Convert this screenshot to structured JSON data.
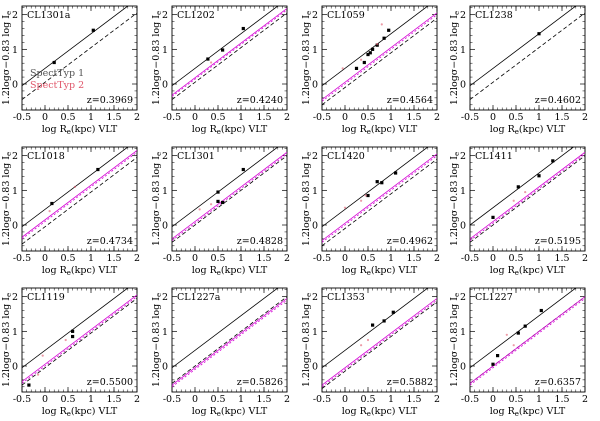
{
  "figure": {
    "title": "",
    "legend": {
      "items": [
        {
          "label": "SpectTyp 1",
          "color": "#555555"
        },
        {
          "label": "SpectTyp 2",
          "color": "#e0566a"
        }
      ],
      "panel_index": 0
    }
  },
  "chart_data": [
    {
      "type": "scatter",
      "name": "CL1301a",
      "zlabel": "z=0.3969",
      "xlabel": "log R_e(kpc) VLT",
      "ylabel": "1.2logσ−0.83 log I_e",
      "xlim": [
        -0.5,
        2
      ],
      "ylim": [
        -0.75,
        2.25
      ],
      "xticks": [
        "-0.5",
        "0",
        "0.5",
        "1",
        "1.5",
        "2"
      ],
      "yticks": [
        "0",
        "1",
        "2"
      ],
      "lines": {
        "solid": [
          0.45,
          1.0
        ],
        "dashed": [
          0.05,
          1.0
        ],
        "magenta": null,
        "magenta_dashed": null
      },
      "points": [
        {
          "x": 0.2,
          "y": 0.62,
          "t": 1
        },
        {
          "x": 1.05,
          "y": 1.55,
          "t": 1
        }
      ]
    },
    {
      "type": "scatter",
      "name": "CL1202",
      "zlabel": "z=0.4240",
      "xlabel": "log R_e(kpc) VLT",
      "ylabel": "1.2logσ−0.83 log I_e",
      "xlim": [
        -0.5,
        2
      ],
      "ylim": [
        -0.75,
        2.25
      ],
      "xticks": [
        "-0.5",
        "0",
        "0.5",
        "1",
        "1.5",
        "2"
      ],
      "yticks": [
        "0",
        "1",
        "2"
      ],
      "lines": {
        "solid": [
          0.45,
          1.0
        ],
        "dashed": [
          0.05,
          1.0
        ],
        "magenta": [
          0.18,
          1.0
        ],
        "magenta_dashed": [
          0.14,
          1.0
        ]
      },
      "points": [
        {
          "x": 0.28,
          "y": 0.72,
          "t": 1
        },
        {
          "x": 0.6,
          "y": 0.98,
          "t": 1
        },
        {
          "x": 1.05,
          "y": 1.6,
          "t": 1
        },
        {
          "x": 0.35,
          "y": 0.62,
          "t": 2
        }
      ]
    },
    {
      "type": "scatter",
      "name": "CL1059",
      "zlabel": "z=0.4564",
      "xlabel": "log R_e(kpc) VLT",
      "ylabel": "1.2logσ−0.83 log I_e",
      "xlim": [
        -0.5,
        2
      ],
      "ylim": [
        -0.75,
        2.25
      ],
      "xticks": [
        "-0.5",
        "0",
        "0.5",
        "1",
        "1.5",
        "2"
      ],
      "yticks": [
        "0",
        "1",
        "2"
      ],
      "lines": {
        "solid": [
          0.45,
          1.0
        ],
        "dashed": [
          -0.1,
          1.0
        ],
        "magenta": [
          0.05,
          1.0
        ],
        "magenta_dashed": [
          0.0,
          1.0
        ]
      },
      "points": [
        {
          "x": 0.25,
          "y": 0.45,
          "t": 1
        },
        {
          "x": 0.42,
          "y": 0.62,
          "t": 1
        },
        {
          "x": 0.5,
          "y": 0.85,
          "t": 1
        },
        {
          "x": 0.6,
          "y": 1.0,
          "t": 1
        },
        {
          "x": 0.7,
          "y": 1.12,
          "t": 1
        },
        {
          "x": 0.85,
          "y": 1.32,
          "t": 1
        },
        {
          "x": 0.95,
          "y": 1.55,
          "t": 1
        },
        {
          "x": 0.55,
          "y": 0.9,
          "t": 1
        },
        {
          "x": -0.05,
          "y": 0.45,
          "t": 2
        },
        {
          "x": 0.35,
          "y": 0.7,
          "t": 2
        },
        {
          "x": 0.7,
          "y": 1.15,
          "t": 2
        },
        {
          "x": 0.8,
          "y": 1.72,
          "t": 2
        }
      ]
    },
    {
      "type": "scatter",
      "name": "CL1238",
      "zlabel": "z=0.4602",
      "xlabel": "log R_e(kpc) VLT",
      "ylabel": "1.2logσ−0.83 log I_e",
      "xlim": [
        -0.5,
        2
      ],
      "ylim": [
        -0.75,
        2.25
      ],
      "xticks": [
        "-0.5",
        "0",
        "0.5",
        "1",
        "1.5",
        "2"
      ],
      "yticks": [
        "0",
        "1",
        "2"
      ],
      "lines": {
        "solid": [
          0.45,
          1.0
        ],
        "dashed": [
          0.05,
          1.0
        ],
        "magenta": null,
        "magenta_dashed": null
      },
      "points": [
        {
          "x": 1.0,
          "y": 1.45,
          "t": 1
        }
      ]
    },
    {
      "type": "scatter",
      "name": "CL1018",
      "zlabel": "z=0.4734",
      "xlabel": "log R_e(kpc) VLT",
      "ylabel": "1.2logσ−0.83 log I_e",
      "xlim": [
        -0.5,
        2
      ],
      "ylim": [
        -0.75,
        2.25
      ],
      "xticks": [
        "-0.5",
        "0",
        "0.5",
        "1",
        "1.5",
        "2"
      ],
      "yticks": [
        "0",
        "1",
        "2"
      ],
      "lines": {
        "solid": [
          0.45,
          1.0
        ],
        "dashed": [
          -0.05,
          1.0
        ],
        "magenta": [
          0.15,
          1.0
        ],
        "magenta_dashed": [
          0.1,
          1.0
        ]
      },
      "points": [
        {
          "x": 0.15,
          "y": 0.62,
          "t": 1
        },
        {
          "x": 1.15,
          "y": 1.6,
          "t": 1
        },
        {
          "x": 0.1,
          "y": 0.4,
          "t": 2
        },
        {
          "x": 0.65,
          "y": 1.1,
          "t": 2
        }
      ]
    },
    {
      "type": "scatter",
      "name": "CL1301",
      "zlabel": "z=0.4828",
      "xlabel": "log R_e(kpc) VLT",
      "ylabel": "1.2logσ−0.83 log I_e",
      "xlim": [
        -0.5,
        2
      ],
      "ylim": [
        -0.75,
        2.25
      ],
      "xticks": [
        "-0.5",
        "0",
        "0.5",
        "1",
        "1.5",
        "2"
      ],
      "yticks": [
        "0",
        "1",
        "2"
      ],
      "lines": {
        "solid": [
          0.45,
          1.0
        ],
        "dashed": [
          0.0,
          1.0
        ],
        "magenta": [
          0.1,
          1.0
        ],
        "magenta_dashed": [
          0.05,
          1.0
        ]
      },
      "points": [
        {
          "x": 0.5,
          "y": 0.95,
          "t": 1
        },
        {
          "x": 0.5,
          "y": 0.68,
          "t": 1
        },
        {
          "x": 0.6,
          "y": 0.65,
          "t": 1
        },
        {
          "x": 1.05,
          "y": 1.6,
          "t": 1
        },
        {
          "x": 0.1,
          "y": 0.45,
          "t": 2
        },
        {
          "x": 0.35,
          "y": 0.6,
          "t": 2
        }
      ]
    },
    {
      "type": "scatter",
      "name": "CL1420",
      "zlabel": "z=0.4962",
      "xlabel": "log R_e(kpc) VLT",
      "ylabel": "1.2logσ−0.83 log I_e",
      "xlim": [
        -0.5,
        2
      ],
      "ylim": [
        -0.75,
        2.25
      ],
      "xticks": [
        "-0.5",
        "0",
        "0.5",
        "1",
        "1.5",
        "2"
      ],
      "yticks": [
        "0",
        "1",
        "2"
      ],
      "lines": {
        "solid": [
          0.45,
          1.0
        ],
        "dashed": [
          -0.1,
          1.0
        ],
        "magenta": [
          0.05,
          1.0
        ],
        "magenta_dashed": [
          0.0,
          1.0
        ]
      },
      "points": [
        {
          "x": 0.5,
          "y": 0.85,
          "t": 1
        },
        {
          "x": 0.7,
          "y": 1.25,
          "t": 1
        },
        {
          "x": 0.8,
          "y": 1.22,
          "t": 1
        },
        {
          "x": 1.1,
          "y": 1.5,
          "t": 1
        },
        {
          "x": 0.0,
          "y": 0.5,
          "t": 2
        },
        {
          "x": 0.35,
          "y": 0.7,
          "t": 2
        },
        {
          "x": 0.45,
          "y": 0.85,
          "t": 2
        }
      ]
    },
    {
      "type": "scatter",
      "name": "CL1411",
      "zlabel": "z=0.5195",
      "xlabel": "log R_e(kpc) VLT",
      "ylabel": "1.2logσ−0.83 log I_e",
      "xlim": [
        -0.5,
        2
      ],
      "ylim": [
        -0.75,
        2.25
      ],
      "xticks": [
        "-0.5",
        "0",
        "0.5",
        "1",
        "1.5",
        "2"
      ],
      "yticks": [
        "0",
        "1",
        "2"
      ],
      "lines": {
        "solid": [
          0.5,
          1.0
        ],
        "dashed": [
          0.0,
          1.0
        ],
        "magenta": [
          0.1,
          1.0
        ],
        "magenta_dashed": [
          0.05,
          1.0
        ]
      },
      "points": [
        {
          "x": 0.0,
          "y": 0.22,
          "t": 1
        },
        {
          "x": 0.55,
          "y": 1.1,
          "t": 1
        },
        {
          "x": 1.0,
          "y": 1.42,
          "t": 1
        },
        {
          "x": 1.3,
          "y": 1.85,
          "t": 1
        },
        {
          "x": 0.45,
          "y": 0.7,
          "t": 2
        },
        {
          "x": 0.7,
          "y": 0.95,
          "t": 2
        }
      ]
    },
    {
      "type": "scatter",
      "name": "CL1119",
      "zlabel": "z=0.5500",
      "xlabel": "log R_e(kpc) VLT",
      "ylabel": "1.2logσ−0.83 log I_e",
      "xlim": [
        -0.5,
        2
      ],
      "ylim": [
        -0.75,
        2.25
      ],
      "xticks": [
        "-0.5",
        "0",
        "0.5",
        "1",
        "1.5",
        "2"
      ],
      "yticks": [
        "0",
        "1",
        "2"
      ],
      "lines": {
        "solid": [
          0.45,
          1.0
        ],
        "dashed": [
          -0.05,
          1.0
        ],
        "magenta": [
          0.05,
          1.0
        ],
        "magenta_dashed": [
          0.0,
          1.0
        ]
      },
      "points": [
        {
          "x": -0.35,
          "y": -0.55,
          "t": 1
        },
        {
          "x": 0.6,
          "y": 1.0,
          "t": 1
        },
        {
          "x": 0.6,
          "y": 0.85,
          "t": 1
        },
        {
          "x": -0.15,
          "y": -0.25,
          "t": 2
        },
        {
          "x": -0.05,
          "y": 0.3,
          "t": 2
        },
        {
          "x": 0.45,
          "y": 0.75,
          "t": 2
        }
      ]
    },
    {
      "type": "scatter",
      "name": "CL1227a",
      "zlabel": "z=0.5826",
      "xlabel": "log R_e(kpc) VLT",
      "ylabel": "1.2logσ−0.83 log I_e",
      "xlim": [
        -0.5,
        2
      ],
      "ylim": [
        -0.75,
        2.25
      ],
      "xticks": [
        "-0.5",
        "0",
        "0.5",
        "1",
        "1.5",
        "2"
      ],
      "yticks": [
        "0",
        "1",
        "2"
      ],
      "lines": {
        "solid": [
          0.45,
          1.0
        ],
        "dashed": [
          0.0,
          1.0
        ],
        "magenta": [
          -0.05,
          1.0
        ],
        "magenta_dashed": [
          -0.1,
          1.0
        ]
      },
      "points": []
    },
    {
      "type": "scatter",
      "name": "CL1353",
      "zlabel": "z=0.5882",
      "xlabel": "log R_e(kpc) VLT",
      "ylabel": "1.2logσ−0.83 log I_e",
      "xlim": [
        -0.5,
        2
      ],
      "ylim": [
        -0.75,
        2.25
      ],
      "xticks": [
        "-0.5",
        "0",
        "0.5",
        "1",
        "1.5",
        "2"
      ],
      "yticks": [
        "0",
        "1",
        "2"
      ],
      "lines": {
        "solid": [
          0.45,
          1.0
        ],
        "dashed": [
          -0.15,
          1.0
        ],
        "magenta": [
          -0.05,
          1.0
        ],
        "magenta_dashed": [
          -0.1,
          1.0
        ]
      },
      "points": [
        {
          "x": 0.6,
          "y": 1.18,
          "t": 1
        },
        {
          "x": 0.85,
          "y": 1.3,
          "t": 1
        },
        {
          "x": 1.05,
          "y": 1.55,
          "t": 1
        },
        {
          "x": 0.35,
          "y": 0.6,
          "t": 2
        },
        {
          "x": 0.5,
          "y": 0.75,
          "t": 2
        }
      ]
    },
    {
      "type": "scatter",
      "name": "CL1227",
      "zlabel": "z=0.6357",
      "xlabel": "log R_e(kpc) VLT",
      "ylabel": "1.2logσ−0.83 log I_e",
      "xlim": [
        -0.5,
        2
      ],
      "ylim": [
        -0.75,
        2.25
      ],
      "xticks": [
        "-0.5",
        "0",
        "0.5",
        "1",
        "1.5",
        "2"
      ],
      "yticks": [
        "0",
        "1",
        "2"
      ],
      "lines": {
        "solid": [
          0.45,
          1.0
        ],
        "dashed": [
          0.0,
          1.0
        ],
        "magenta": [
          0.0,
          1.0
        ],
        "magenta_dashed": [
          -0.05,
          1.0
        ]
      },
      "points": [
        {
          "x": 0.0,
          "y": 0.05,
          "t": 1
        },
        {
          "x": 0.1,
          "y": 0.3,
          "t": 1
        },
        {
          "x": 0.55,
          "y": 0.95,
          "t": 1
        },
        {
          "x": 0.7,
          "y": 1.15,
          "t": 1
        },
        {
          "x": 1.05,
          "y": 1.6,
          "t": 1
        },
        {
          "x": 0.3,
          "y": 0.9,
          "t": 2
        },
        {
          "x": 0.45,
          "y": 0.6,
          "t": 2
        }
      ]
    }
  ]
}
